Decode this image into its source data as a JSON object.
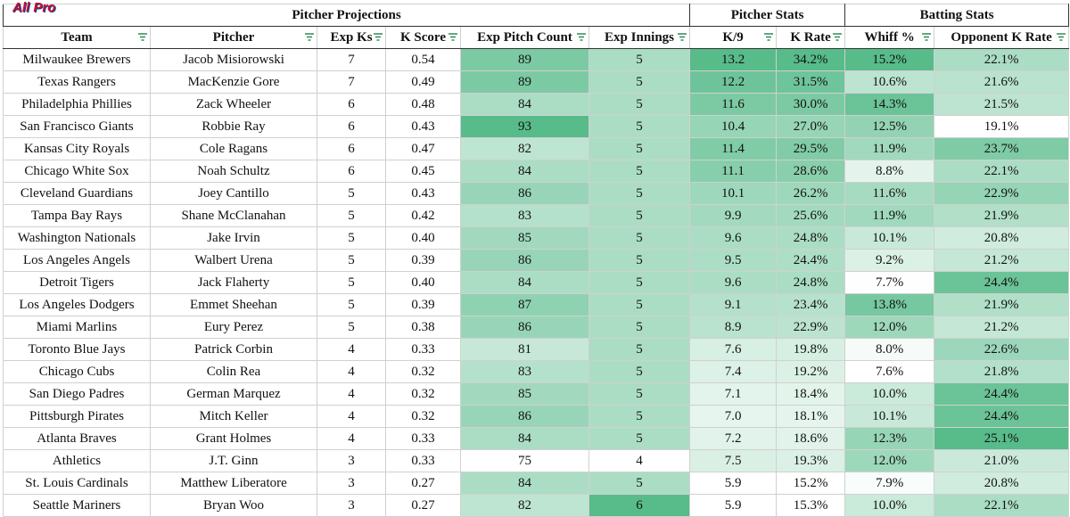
{
  "header": {
    "logo": "All Pro",
    "groups": [
      "Pitcher Projections",
      "Pitcher Stats",
      "Batting Stats"
    ]
  },
  "table": {
    "columns": [
      "Team",
      "Pitcher",
      "Exp Ks",
      "K Score",
      "Exp Pitch Count",
      "Exp Innings",
      "K/9",
      "K Rate",
      "Whiff %",
      "Opponent K Rate"
    ],
    "rows": [
      [
        "Milwaukee Brewers",
        "Jacob Misiorowski",
        "7",
        "0.54",
        "89",
        "5",
        "13.2",
        "34.2%",
        "15.2%",
        "22.1%"
      ],
      [
        "Texas Rangers",
        "MacKenzie Gore",
        "7",
        "0.49",
        "89",
        "5",
        "12.2",
        "31.5%",
        "10.6%",
        "21.6%"
      ],
      [
        "Philadelphia Phillies",
        "Zack Wheeler",
        "6",
        "0.48",
        "84",
        "5",
        "11.6",
        "30.0%",
        "14.3%",
        "21.5%"
      ],
      [
        "San Francisco Giants",
        "Robbie Ray",
        "6",
        "0.43",
        "93",
        "5",
        "10.4",
        "27.0%",
        "12.5%",
        "19.1%"
      ],
      [
        "Kansas City Royals",
        "Cole Ragans",
        "6",
        "0.47",
        "82",
        "5",
        "11.4",
        "29.5%",
        "11.9%",
        "23.7%"
      ],
      [
        "Chicago White Sox",
        "Noah Schultz",
        "6",
        "0.45",
        "84",
        "5",
        "11.1",
        "28.6%",
        "8.8%",
        "22.1%"
      ],
      [
        "Cleveland Guardians",
        "Joey Cantillo",
        "5",
        "0.43",
        "86",
        "5",
        "10.1",
        "26.2%",
        "11.6%",
        "22.9%"
      ],
      [
        "Tampa Bay Rays",
        "Shane McClanahan",
        "5",
        "0.42",
        "83",
        "5",
        "9.9",
        "25.6%",
        "11.9%",
        "21.9%"
      ],
      [
        "Washington Nationals",
        "Jake Irvin",
        "5",
        "0.40",
        "85",
        "5",
        "9.6",
        "24.8%",
        "10.1%",
        "20.8%"
      ],
      [
        "Los Angeles Angels",
        "Walbert Urena",
        "5",
        "0.39",
        "86",
        "5",
        "9.5",
        "24.4%",
        "9.2%",
        "21.2%"
      ],
      [
        "Detroit Tigers",
        "Jack Flaherty",
        "5",
        "0.40",
        "84",
        "5",
        "9.6",
        "24.8%",
        "7.7%",
        "24.4%"
      ],
      [
        "Los Angeles Dodgers",
        "Emmet Sheehan",
        "5",
        "0.39",
        "87",
        "5",
        "9.1",
        "23.4%",
        "13.8%",
        "21.9%"
      ],
      [
        "Miami Marlins",
        "Eury Perez",
        "5",
        "0.38",
        "86",
        "5",
        "8.9",
        "22.9%",
        "12.0%",
        "21.2%"
      ],
      [
        "Toronto Blue Jays",
        "Patrick Corbin",
        "4",
        "0.33",
        "81",
        "5",
        "7.6",
        "19.8%",
        "8.0%",
        "22.6%"
      ],
      [
        "Chicago Cubs",
        "Colin Rea",
        "4",
        "0.32",
        "83",
        "5",
        "7.4",
        "19.2%",
        "7.6%",
        "21.8%"
      ],
      [
        "San Diego Padres",
        "German Marquez",
        "4",
        "0.32",
        "85",
        "5",
        "7.1",
        "18.4%",
        "10.0%",
        "24.4%"
      ],
      [
        "Pittsburgh Pirates",
        "Mitch Keller",
        "4",
        "0.32",
        "86",
        "5",
        "7.0",
        "18.1%",
        "10.1%",
        "24.4%"
      ],
      [
        "Atlanta Braves",
        "Grant Holmes",
        "4",
        "0.33",
        "84",
        "5",
        "7.2",
        "18.6%",
        "12.3%",
        "25.1%"
      ],
      [
        "Athletics",
        "J.T. Ginn",
        "3",
        "0.33",
        "75",
        "4",
        "7.5",
        "19.3%",
        "12.0%",
        "21.0%"
      ],
      [
        "St. Louis Cardinals",
        "Matthew Liberatore",
        "3",
        "0.27",
        "84",
        "5",
        "5.9",
        "15.2%",
        "7.9%",
        "20.8%"
      ],
      [
        "Seattle Mariners",
        "Bryan Woo",
        "3",
        "0.27",
        "82",
        "6",
        "5.9",
        "15.3%",
        "10.0%",
        "22.1%"
      ]
    ]
  }
}
